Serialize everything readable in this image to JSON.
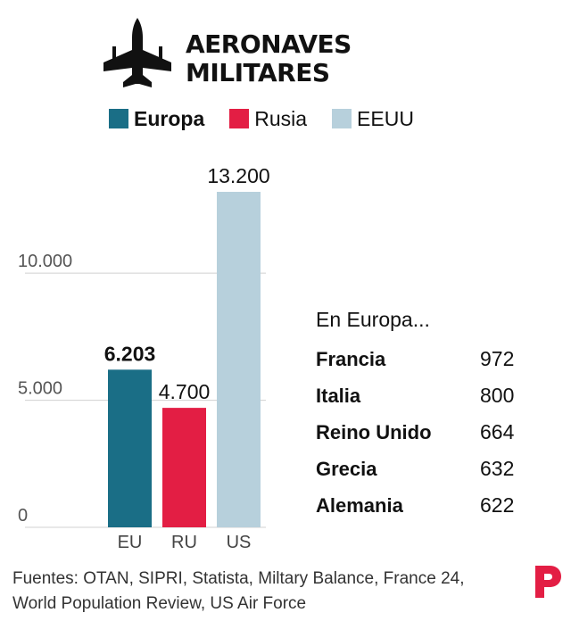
{
  "title_line1": "AERONAVES",
  "title_line2": "MILITARES",
  "legend": [
    {
      "label": "Europa",
      "color": "#1a6e86",
      "bold": true
    },
    {
      "label": "Rusia",
      "color": "#e31e44",
      "bold": false
    },
    {
      "label": "EEUU",
      "color": "#b7d0dc",
      "bold": false
    }
  ],
  "chart_data": {
    "type": "bar",
    "categories": [
      "EU",
      "RU",
      "US"
    ],
    "values": [
      6203,
      4700,
      13200
    ],
    "value_labels": [
      "6.203",
      "4.700",
      "13.200"
    ],
    "colors": [
      "#1a6e86",
      "#e31e44",
      "#b7d0dc"
    ],
    "yticks": [
      0,
      5000,
      10000
    ],
    "ytick_labels": [
      "0",
      "5.000",
      "10.000"
    ],
    "ylim": [
      0,
      13200
    ],
    "grid": true
  },
  "side": {
    "heading": "En Europa...",
    "rows": [
      {
        "name": "Francia",
        "value": "972"
      },
      {
        "name": "Italia",
        "value": "800"
      },
      {
        "name": "Reino Unido",
        "value": "664"
      },
      {
        "name": "Grecia",
        "value": "632"
      },
      {
        "name": "Alemania",
        "value": "622"
      }
    ]
  },
  "footer": {
    "line1": "Fuentes: OTAN, SIPRI, Statista, Miltary Balance, France 24,",
    "line2": "World Population Review, US Air Force"
  },
  "logo_color": "#e31e44"
}
